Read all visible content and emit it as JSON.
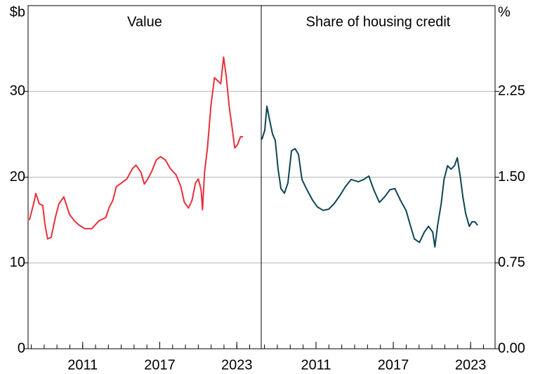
{
  "chart_data": [
    {
      "type": "line",
      "title": "Value",
      "y_unit": "$b",
      "yaxis_position": "left",
      "color": "#e8303a",
      "xlim": [
        2006.75,
        2024.9
      ],
      "xticks": [
        2011,
        2017,
        2023
      ],
      "xminorticks": [
        2007,
        2008,
        2009,
        2010,
        2011,
        2012,
        2013,
        2014,
        2015,
        2016,
        2017,
        2018,
        2019,
        2020,
        2021,
        2022,
        2023,
        2024
      ],
      "ylim": [
        0,
        40
      ],
      "yticks": [
        0,
        10,
        20,
        30
      ],
      "grid": true,
      "x": [
        2006.85,
        2007.18,
        2007.35,
        2007.62,
        2007.89,
        2008.05,
        2008.27,
        2008.55,
        2008.87,
        2009.15,
        2009.53,
        2009.96,
        2010.35,
        2010.73,
        2011.16,
        2011.71,
        2012.26,
        2012.8,
        2013.07,
        2013.35,
        2013.62,
        2014.0,
        2014.44,
        2014.87,
        2015.15,
        2015.53,
        2015.8,
        2016.07,
        2016.35,
        2016.73,
        2017.06,
        2017.44,
        2017.82,
        2018.26,
        2018.64,
        2018.91,
        2019.24,
        2019.51,
        2019.78,
        2020.0,
        2020.22,
        2020.33,
        2020.49,
        2020.71,
        2020.98,
        2021.26,
        2021.53,
        2021.75,
        2021.97,
        2022.19,
        2022.4,
        2022.62,
        2022.84,
        2023.06,
        2023.28,
        2023.49
      ],
      "values": [
        15.0,
        16.9,
        18.1,
        16.9,
        16.7,
        14.6,
        12.8,
        13.0,
        15.3,
        16.9,
        17.7,
        15.7,
        14.9,
        14.4,
        14.0,
        14.0,
        14.9,
        15.3,
        16.5,
        17.3,
        18.9,
        19.3,
        19.8,
        21.0,
        21.4,
        20.6,
        19.2,
        19.8,
        20.6,
        22.0,
        22.4,
        22.0,
        21.0,
        20.3,
        18.9,
        17.1,
        16.4,
        17.3,
        19.3,
        19.8,
        18.5,
        16.2,
        20.6,
        23.4,
        28.3,
        31.6,
        31.2,
        30.9,
        34.0,
        31.6,
        28.3,
        25.9,
        23.4,
        23.8,
        24.7,
        24.7
      ]
    },
    {
      "type": "line",
      "title": "Share of housing credit",
      "y_unit": "%",
      "yaxis_position": "right",
      "color": "#0d4552",
      "xlim": [
        2006.75,
        2024.9
      ],
      "xticks": [
        2011,
        2017,
        2023
      ],
      "xminorticks": [
        2007,
        2008,
        2009,
        2010,
        2011,
        2012,
        2013,
        2014,
        2015,
        2016,
        2017,
        2018,
        2019,
        2020,
        2021,
        2022,
        2023,
        2024
      ],
      "ylim": [
        0,
        3
      ],
      "yticks": [
        {
          "value": 0,
          "label": "0.00"
        },
        {
          "value": 0.75,
          "label": "0.75"
        },
        {
          "value": 1.5,
          "label": "1.50"
        },
        {
          "value": 2.25,
          "label": "2.25"
        }
      ],
      "grid": true,
      "x": [
        2006.8,
        2007.02,
        2007.19,
        2007.4,
        2007.62,
        2007.84,
        2008.06,
        2008.28,
        2008.55,
        2008.82,
        2009.1,
        2009.37,
        2009.64,
        2009.91,
        2010.3,
        2010.73,
        2011.11,
        2011.55,
        2011.99,
        2012.42,
        2012.86,
        2013.3,
        2013.73,
        2014.28,
        2014.71,
        2015.1,
        2015.48,
        2015.92,
        2016.35,
        2016.73,
        2017.12,
        2017.55,
        2017.99,
        2018.32,
        2018.64,
        2019.03,
        2019.41,
        2019.73,
        2020.06,
        2020.23,
        2020.44,
        2020.72,
        2020.94,
        2021.21,
        2021.48,
        2021.75,
        2021.97,
        2022.19,
        2022.4,
        2022.62,
        2022.9,
        2023.11,
        2023.33,
        2023.55
      ],
      "values": [
        1.83,
        1.91,
        2.12,
        2.0,
        1.88,
        1.82,
        1.57,
        1.4,
        1.36,
        1.45,
        1.73,
        1.75,
        1.7,
        1.48,
        1.39,
        1.3,
        1.24,
        1.21,
        1.22,
        1.27,
        1.34,
        1.42,
        1.48,
        1.46,
        1.48,
        1.51,
        1.39,
        1.28,
        1.33,
        1.39,
        1.4,
        1.3,
        1.21,
        1.08,
        0.96,
        0.93,
        1.02,
        1.07,
        1.02,
        0.89,
        1.08,
        1.27,
        1.48,
        1.6,
        1.57,
        1.6,
        1.67,
        1.51,
        1.33,
        1.18,
        1.07,
        1.11,
        1.11,
        1.08
      ]
    }
  ]
}
